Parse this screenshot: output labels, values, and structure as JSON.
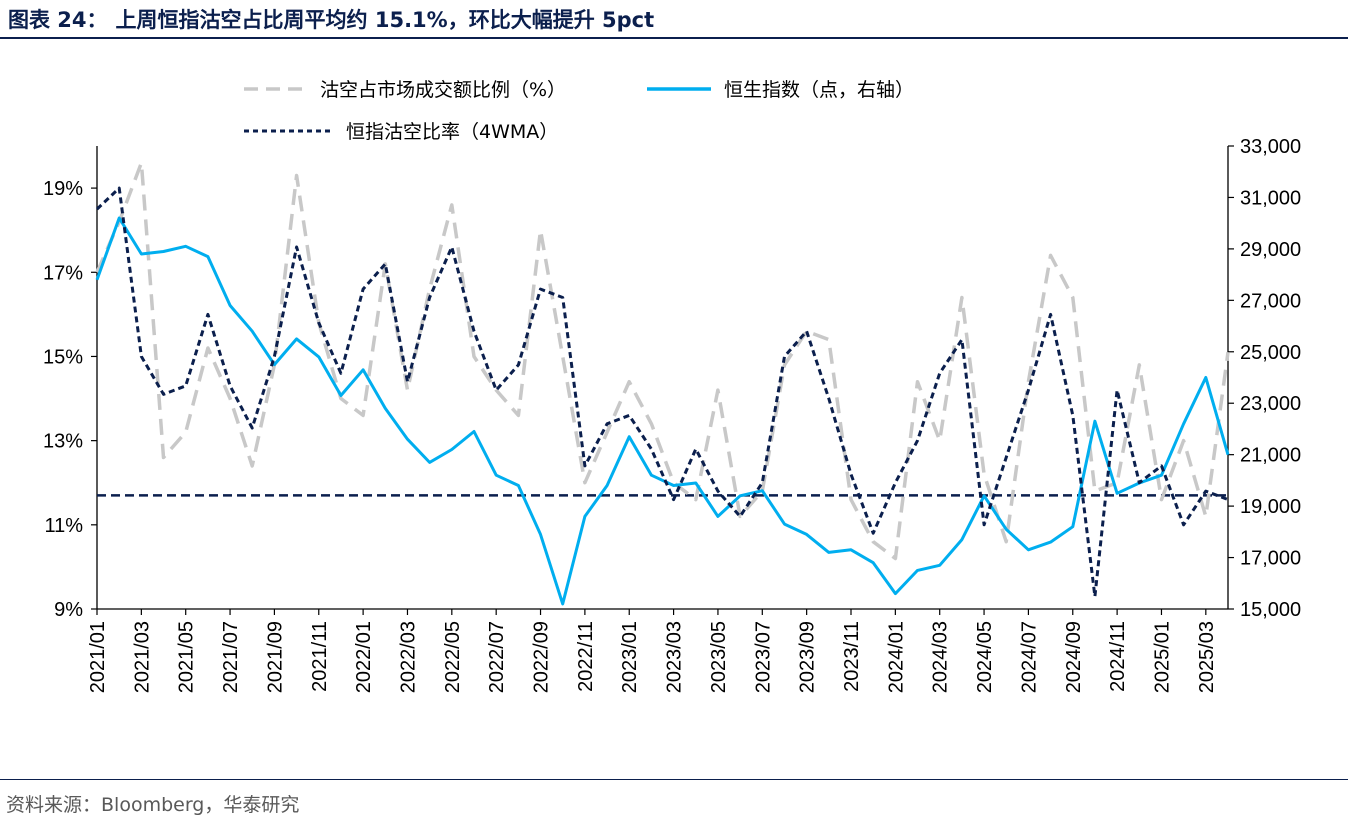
{
  "header": {
    "label": "图表 24：",
    "title": "上周恒指沽空占比周平均约 15.1%，环比大幅提升 5pct"
  },
  "source": "资料来源：Bloomberg，华泰研究",
  "colors": {
    "short_ratio": "#c8c8c8",
    "hsi": "#00aeef",
    "wma": "#0b1f4d",
    "axis": "#000000",
    "brand": "#0b1f4d"
  },
  "chart_data": {
    "type": "line",
    "title": "上周恒指沽空占比周平均约 15.1%，环比大幅提升 5pct",
    "x_range": [
      "2021/01",
      "2025/04"
    ],
    "x_ticks": [
      "2021/01",
      "2021/03",
      "2021/05",
      "2021/07",
      "2021/09",
      "2021/11",
      "2022/01",
      "2022/03",
      "2022/05",
      "2022/07",
      "2022/09",
      "2022/11",
      "2023/01",
      "2023/03",
      "2023/05",
      "2023/07",
      "2023/09",
      "2023/11",
      "2024/01",
      "2024/03",
      "2024/05",
      "2024/07",
      "2024/09",
      "2024/11",
      "2025/01",
      "2025/03"
    ],
    "y_left": {
      "label": "沽空占市场成交额比例（%）",
      "lim": [
        9,
        20
      ],
      "ticks": [
        9,
        11,
        13,
        15,
        17,
        19
      ],
      "tick_labels": [
        "9%",
        "11%",
        "13%",
        "15%",
        "17%",
        "19%"
      ]
    },
    "y_right": {
      "label": "恒生指数（点，右轴）",
      "lim": [
        15000,
        33000
      ],
      "ticks": [
        15000,
        17000,
        19000,
        21000,
        23000,
        25000,
        27000,
        29000,
        31000,
        33000
      ],
      "tick_labels": [
        "15,000",
        "17,000",
        "19,000",
        "21,000",
        "23,000",
        "25,000",
        "27,000",
        "29,000",
        "31,000",
        "33,000"
      ]
    },
    "reference_line": {
      "axis": "left",
      "value": 11.7
    },
    "legend": [
      "沽空占市场成交额比例（%）",
      "恒生指数（点，右轴）",
      "恒指沽空比率（4WMA）"
    ],
    "series": [
      {
        "name": "沽空占市场成交额比例（%）",
        "axis": "left",
        "style": "dashed",
        "points": [
          [
            "2021/01",
            17.0
          ],
          [
            "2021/02",
            18.2
          ],
          [
            "2021/03",
            19.6
          ],
          [
            "2021/04",
            12.6
          ],
          [
            "2021/05",
            13.2
          ],
          [
            "2021/06",
            15.2
          ],
          [
            "2021/07",
            14.0
          ],
          [
            "2021/08",
            12.4
          ],
          [
            "2021/09",
            14.8
          ],
          [
            "2021/10",
            19.3
          ],
          [
            "2021/11",
            15.8
          ],
          [
            "2021/12",
            14.0
          ],
          [
            "2022/01",
            13.6
          ],
          [
            "2022/02",
            17.2
          ],
          [
            "2022/03",
            14.2
          ],
          [
            "2022/04",
            16.6
          ],
          [
            "2022/05",
            18.6
          ],
          [
            "2022/06",
            15.0
          ],
          [
            "2022/07",
            14.2
          ],
          [
            "2022/08",
            13.6
          ],
          [
            "2022/09",
            18.0
          ],
          [
            "2022/10",
            15.0
          ],
          [
            "2022/11",
            12.0
          ],
          [
            "2022/12",
            13.2
          ],
          [
            "2023/01",
            14.4
          ],
          [
            "2023/02",
            13.4
          ],
          [
            "2023/03",
            12.0
          ],
          [
            "2023/04",
            11.6
          ],
          [
            "2023/05",
            14.2
          ],
          [
            "2023/06",
            11.2
          ],
          [
            "2023/07",
            11.8
          ],
          [
            "2023/08",
            14.8
          ],
          [
            "2023/09",
            15.6
          ],
          [
            "2023/10",
            15.4
          ],
          [
            "2023/11",
            11.6
          ],
          [
            "2023/12",
            10.6
          ],
          [
            "2024/01",
            10.2
          ],
          [
            "2024/02",
            14.4
          ],
          [
            "2024/03",
            13.0
          ],
          [
            "2024/04",
            16.4
          ],
          [
            "2024/05",
            12.2
          ],
          [
            "2024/06",
            10.6
          ],
          [
            "2024/07",
            14.4
          ],
          [
            "2024/08",
            17.4
          ],
          [
            "2024/09",
            16.4
          ],
          [
            "2024/10",
            11.8
          ],
          [
            "2024/11",
            12.0
          ],
          [
            "2024/12",
            14.8
          ],
          [
            "2025/01",
            11.6
          ],
          [
            "2025/02",
            13.0
          ],
          [
            "2025/03",
            11.2
          ],
          [
            "2025/04",
            15.1
          ]
        ]
      },
      {
        "name": "恒生指数（点，右轴）",
        "axis": "right",
        "style": "solid",
        "points": [
          [
            "2021/01",
            27800
          ],
          [
            "2021/02",
            30200
          ],
          [
            "2021/03",
            28800
          ],
          [
            "2021/04",
            28900
          ],
          [
            "2021/05",
            29100
          ],
          [
            "2021/06",
            28700
          ],
          [
            "2021/07",
            26800
          ],
          [
            "2021/08",
            25800
          ],
          [
            "2021/09",
            24500
          ],
          [
            "2021/10",
            25500
          ],
          [
            "2021/11",
            24800
          ],
          [
            "2021/12",
            23300
          ],
          [
            "2022/01",
            24300
          ],
          [
            "2022/02",
            22800
          ],
          [
            "2022/03",
            21600
          ],
          [
            "2022/04",
            20700
          ],
          [
            "2022/05",
            21200
          ],
          [
            "2022/06",
            21900
          ],
          [
            "2022/07",
            20200
          ],
          [
            "2022/08",
            19800
          ],
          [
            "2022/09",
            17900
          ],
          [
            "2022/10",
            15200
          ],
          [
            "2022/11",
            18600
          ],
          [
            "2022/12",
            19800
          ],
          [
            "2023/01",
            21700
          ],
          [
            "2023/02",
            20200
          ],
          [
            "2023/03",
            19800
          ],
          [
            "2023/04",
            19900
          ],
          [
            "2023/05",
            18600
          ],
          [
            "2023/06",
            19400
          ],
          [
            "2023/07",
            19600
          ],
          [
            "2023/08",
            18300
          ],
          [
            "2023/09",
            17900
          ],
          [
            "2023/10",
            17200
          ],
          [
            "2023/11",
            17300
          ],
          [
            "2023/12",
            16800
          ],
          [
            "2024/01",
            15600
          ],
          [
            "2024/02",
            16500
          ],
          [
            "2024/03",
            16700
          ],
          [
            "2024/04",
            17700
          ],
          [
            "2024/05",
            19400
          ],
          [
            "2024/06",
            18100
          ],
          [
            "2024/07",
            17300
          ],
          [
            "2024/08",
            17600
          ],
          [
            "2024/09",
            18200
          ],
          [
            "2024/10",
            22300
          ],
          [
            "2024/11",
            19500
          ],
          [
            "2024/12",
            19900
          ],
          [
            "2025/01",
            20200
          ],
          [
            "2025/02",
            22200
          ],
          [
            "2025/03",
            24000
          ],
          [
            "2025/04",
            21000
          ]
        ]
      },
      {
        "name": "恒指沽空比率（4WMA）",
        "axis": "left",
        "style": "dotted",
        "points": [
          [
            "2021/01",
            18.5
          ],
          [
            "2021/02",
            19.0
          ],
          [
            "2021/03",
            15.0
          ],
          [
            "2021/04",
            14.1
          ],
          [
            "2021/05",
            14.3
          ],
          [
            "2021/06",
            16.0
          ],
          [
            "2021/07",
            14.3
          ],
          [
            "2021/08",
            13.3
          ],
          [
            "2021/09",
            15.0
          ],
          [
            "2021/10",
            17.6
          ],
          [
            "2021/11",
            15.8
          ],
          [
            "2021/12",
            14.6
          ],
          [
            "2022/01",
            16.6
          ],
          [
            "2022/02",
            17.2
          ],
          [
            "2022/03",
            14.4
          ],
          [
            "2022/04",
            16.4
          ],
          [
            "2022/05",
            17.6
          ],
          [
            "2022/06",
            15.6
          ],
          [
            "2022/07",
            14.2
          ],
          [
            "2022/08",
            14.8
          ],
          [
            "2022/09",
            16.6
          ],
          [
            "2022/10",
            16.4
          ],
          [
            "2022/11",
            12.4
          ],
          [
            "2022/12",
            13.4
          ],
          [
            "2023/01",
            13.6
          ],
          [
            "2023/02",
            12.8
          ],
          [
            "2023/03",
            11.6
          ],
          [
            "2023/04",
            12.8
          ],
          [
            "2023/05",
            11.8
          ],
          [
            "2023/06",
            11.2
          ],
          [
            "2023/07",
            12.0
          ],
          [
            "2023/08",
            15.0
          ],
          [
            "2023/09",
            15.6
          ],
          [
            "2023/10",
            14.0
          ],
          [
            "2023/11",
            12.2
          ],
          [
            "2023/12",
            10.8
          ],
          [
            "2024/01",
            12.0
          ],
          [
            "2024/02",
            13.0
          ],
          [
            "2024/03",
            14.6
          ],
          [
            "2024/04",
            15.4
          ],
          [
            "2024/05",
            11.0
          ],
          [
            "2024/06",
            12.6
          ],
          [
            "2024/07",
            14.2
          ],
          [
            "2024/08",
            16.0
          ],
          [
            "2024/09",
            13.6
          ],
          [
            "2024/10",
            9.3
          ],
          [
            "2024/11",
            14.2
          ],
          [
            "2024/12",
            12.0
          ],
          [
            "2025/01",
            12.4
          ],
          [
            "2025/02",
            11.0
          ],
          [
            "2025/03",
            11.8
          ],
          [
            "2025/04",
            11.6
          ]
        ]
      }
    ]
  }
}
